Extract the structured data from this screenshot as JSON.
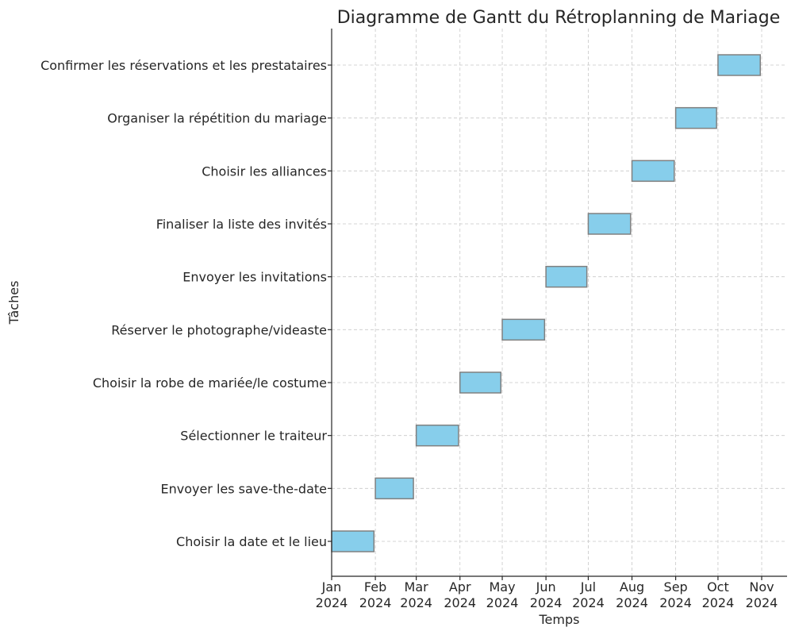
{
  "chart_data": {
    "type": "gantt",
    "title": "Diagramme de Gantt du Rétroplanning de Mariage",
    "xlabel": "Temps",
    "ylabel": "Tâches",
    "x_ticks": [
      {
        "date": "2024-01-01",
        "month": "Jan",
        "year": "2024"
      },
      {
        "date": "2024-02-01",
        "month": "Feb",
        "year": "2024"
      },
      {
        "date": "2024-03-01",
        "month": "Mar",
        "year": "2024"
      },
      {
        "date": "2024-04-01",
        "month": "Apr",
        "year": "2024"
      },
      {
        "date": "2024-05-01",
        "month": "May",
        "year": "2024"
      },
      {
        "date": "2024-06-01",
        "month": "Jun",
        "year": "2024"
      },
      {
        "date": "2024-07-01",
        "month": "Jul",
        "year": "2024"
      },
      {
        "date": "2024-08-01",
        "month": "Aug",
        "year": "2024"
      },
      {
        "date": "2024-09-01",
        "month": "Sep",
        "year": "2024"
      },
      {
        "date": "2024-10-01",
        "month": "Oct",
        "year": "2024"
      },
      {
        "date": "2024-11-01",
        "month": "Nov",
        "year": "2024"
      }
    ],
    "xlim": [
      "2024-01-01",
      "2024-11-19"
    ],
    "grid": true,
    "bar_color": "#87ceeb",
    "bar_edge_color": "#808080",
    "tasks": [
      {
        "name": "Choisir la date et le lieu",
        "start": "2024-01-01",
        "end": "2024-01-31"
      },
      {
        "name": "Envoyer les save-the-date",
        "start": "2024-02-01",
        "end": "2024-02-28"
      },
      {
        "name": "Sélectionner le traiteur",
        "start": "2024-03-01",
        "end": "2024-03-31"
      },
      {
        "name": "Choisir la robe de mariée/le costume",
        "start": "2024-04-01",
        "end": "2024-04-30"
      },
      {
        "name": "Réserver le photographe/videaste",
        "start": "2024-05-01",
        "end": "2024-05-31"
      },
      {
        "name": "Envoyer les invitations",
        "start": "2024-06-01",
        "end": "2024-06-30"
      },
      {
        "name": "Finaliser la liste des invités",
        "start": "2024-07-01",
        "end": "2024-07-31"
      },
      {
        "name": "Choisir les alliances",
        "start": "2024-08-01",
        "end": "2024-08-31"
      },
      {
        "name": "Organiser la répétition du mariage",
        "start": "2024-09-01",
        "end": "2024-09-30"
      },
      {
        "name": "Confirmer les réservations et les prestataires",
        "start": "2024-10-01",
        "end": "2024-10-31"
      }
    ]
  }
}
